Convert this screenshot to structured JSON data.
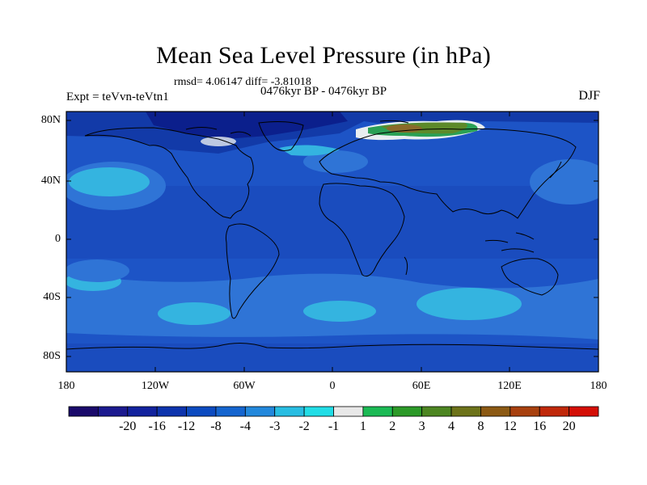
{
  "title": "Mean Sea Level Pressure (in hPa)",
  "stats": "rmsd= 4.06147 diff= -3.81018",
  "period": "0476kyr BP - 0476kyr BP",
  "experiment": "Expt = teVvn-teVtn1",
  "season": "DJF",
  "axes": {
    "y_labels": [
      "80N",
      "40N",
      "0",
      "40S",
      "80S"
    ],
    "x_labels": [
      "180",
      "120W",
      "60W",
      "0",
      "60E",
      "120E",
      "180"
    ]
  },
  "colorbar": {
    "labels": [
      "-20",
      "-16",
      "-12",
      "-8",
      "-4",
      "-3",
      "-2",
      "-1",
      "1",
      "2",
      "3",
      "4",
      "8",
      "12",
      "16",
      "20"
    ],
    "colors": [
      "#1a0a6b",
      "#1c1a8f",
      "#13239e",
      "#0d34ad",
      "#0c4bc0",
      "#1565cf",
      "#2388dc",
      "#28bde2",
      "#22dde6",
      "#e8e8e8",
      "#1cba55",
      "#2c9a28",
      "#4d8622",
      "#6d731a",
      "#8c5a14",
      "#a8410f",
      "#c0280a",
      "#d40f06"
    ]
  },
  "map_palette": {
    "background": "#1d54c6",
    "band_light": "#2f74d6",
    "band_cyan": "#34b4e0",
    "deep": "#123aa8",
    "deepest": "#0b1f8c",
    "positive_green": "#2aa055",
    "positive_olive": "#5d8a2a",
    "positive_brown": "#8a6a2a",
    "neutral": "#e8eef0",
    "coastline": "#000000"
  }
}
